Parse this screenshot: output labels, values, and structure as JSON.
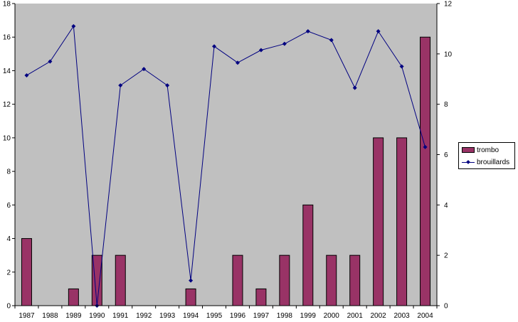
{
  "chart_data": {
    "type": "bar+line",
    "categories": [
      "1987",
      "1988",
      "1989",
      "1990",
      "1991",
      "1992",
      "1993",
      "1994",
      "1995",
      "1996",
      "1997",
      "1998",
      "1999",
      "2000",
      "2001",
      "2002",
      "2003",
      "2004"
    ],
    "series": [
      {
        "name": "trombo",
        "type": "bar",
        "axis": "left",
        "color": "#993366",
        "values": [
          4,
          0,
          1,
          3,
          3,
          0,
          0,
          1,
          0,
          3,
          1,
          3,
          6,
          3,
          3,
          10,
          10,
          16
        ]
      },
      {
        "name": "brouillards",
        "type": "line",
        "axis": "right",
        "color": "#000080",
        "values": [
          9.15,
          9.7,
          11.1,
          0,
          8.75,
          9.4,
          8.75,
          1,
          10.3,
          9.65,
          10.15,
          10.4,
          10.9,
          10.55,
          8.65,
          10.9,
          9.5,
          6.3
        ]
      }
    ],
    "y_left": {
      "range": [
        0,
        18
      ],
      "ticks": [
        "0",
        "2",
        "4",
        "6",
        "8",
        "10",
        "12",
        "14",
        "16",
        "18"
      ]
    },
    "y_right": {
      "range": [
        0,
        12
      ],
      "ticks": [
        "0",
        "2",
        "4",
        "6",
        "8",
        "10",
        "12"
      ]
    },
    "grid": false,
    "plot_background": "#c0c0c0",
    "legend_position": "right"
  }
}
